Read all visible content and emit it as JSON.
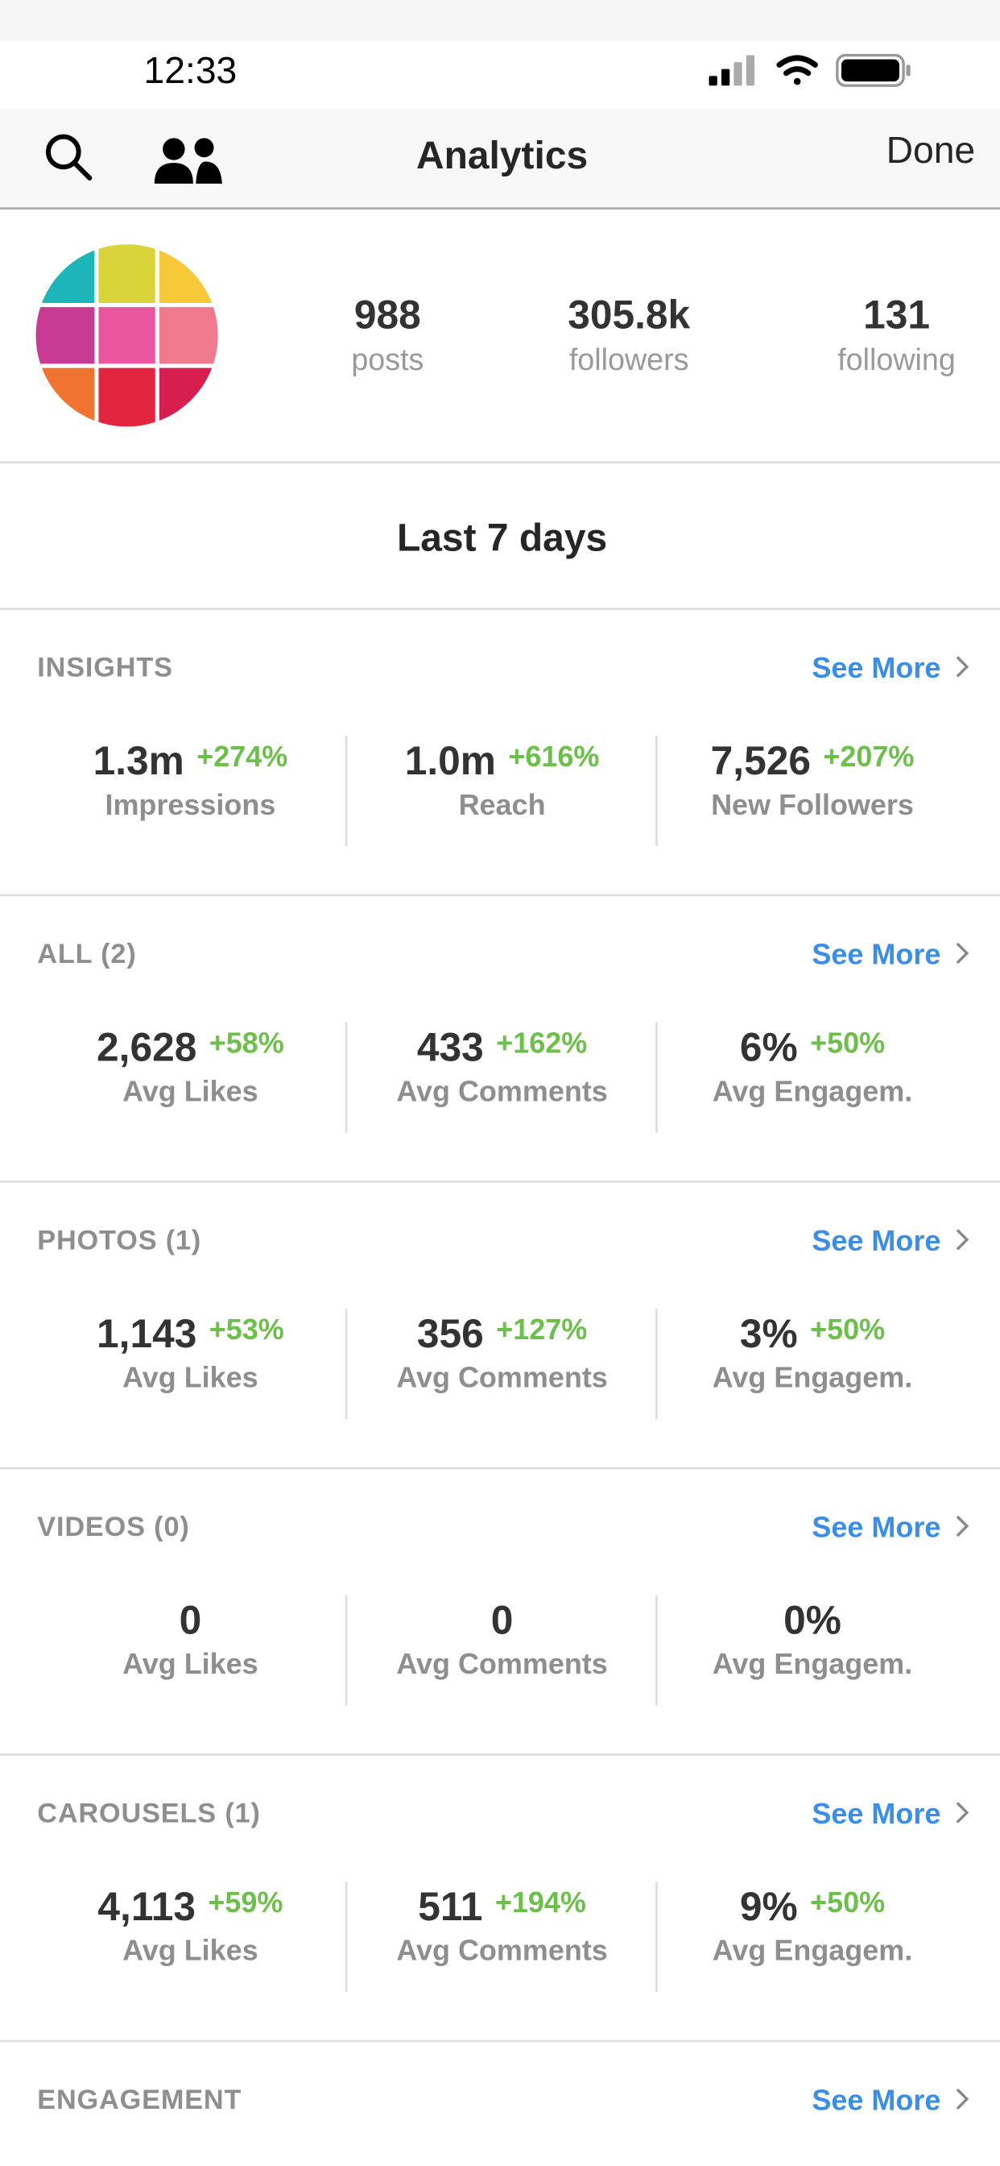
{
  "status_bar": {
    "time": "12:33"
  },
  "nav": {
    "title": "Analytics",
    "done": "Done"
  },
  "profile": {
    "stats": [
      {
        "value": "988",
        "label": "posts"
      },
      {
        "value": "305.8k",
        "label": "followers"
      },
      {
        "value": "131",
        "label": "following"
      }
    ]
  },
  "period": "Last 7 days",
  "sections": [
    {
      "title": "INSIGHTS",
      "see_more": "See More",
      "metrics": [
        {
          "value": "1.3m",
          "change": "+274%",
          "label": "Impressions"
        },
        {
          "value": "1.0m",
          "change": "+616%",
          "label": "Reach"
        },
        {
          "value": "7,526",
          "change": "+207%",
          "label": "New Followers"
        }
      ]
    },
    {
      "title": "ALL (2)",
      "see_more": "See More",
      "metrics": [
        {
          "value": "2,628",
          "change": "+58%",
          "label": "Avg Likes"
        },
        {
          "value": "433",
          "change": "+162%",
          "label": "Avg Comments"
        },
        {
          "value": "6%",
          "change": "+50%",
          "label": "Avg Engagem."
        }
      ]
    },
    {
      "title": "PHOTOS (1)",
      "see_more": "See More",
      "metrics": [
        {
          "value": "1,143",
          "change": "+53%",
          "label": "Avg Likes"
        },
        {
          "value": "356",
          "change": "+127%",
          "label": "Avg Comments"
        },
        {
          "value": "3%",
          "change": "+50%",
          "label": "Avg Engagem."
        }
      ]
    },
    {
      "title": "VIDEOS (0)",
      "see_more": "See More",
      "metrics": [
        {
          "value": "0",
          "label": "Avg Likes"
        },
        {
          "value": "0",
          "label": "Avg Comments"
        },
        {
          "value": "0%",
          "label": "Avg Engagem."
        }
      ]
    },
    {
      "title": "CAROUSELS (1)",
      "see_more": "See More",
      "metrics": [
        {
          "value": "4,113",
          "change": "+59%",
          "label": "Avg Likes"
        },
        {
          "value": "511",
          "change": "+194%",
          "label": "Avg Comments"
        },
        {
          "value": "9%",
          "change": "+50%",
          "label": "Avg Engagem."
        }
      ]
    },
    {
      "title": "ENGAGEMENT",
      "see_more": "See More"
    }
  ]
}
